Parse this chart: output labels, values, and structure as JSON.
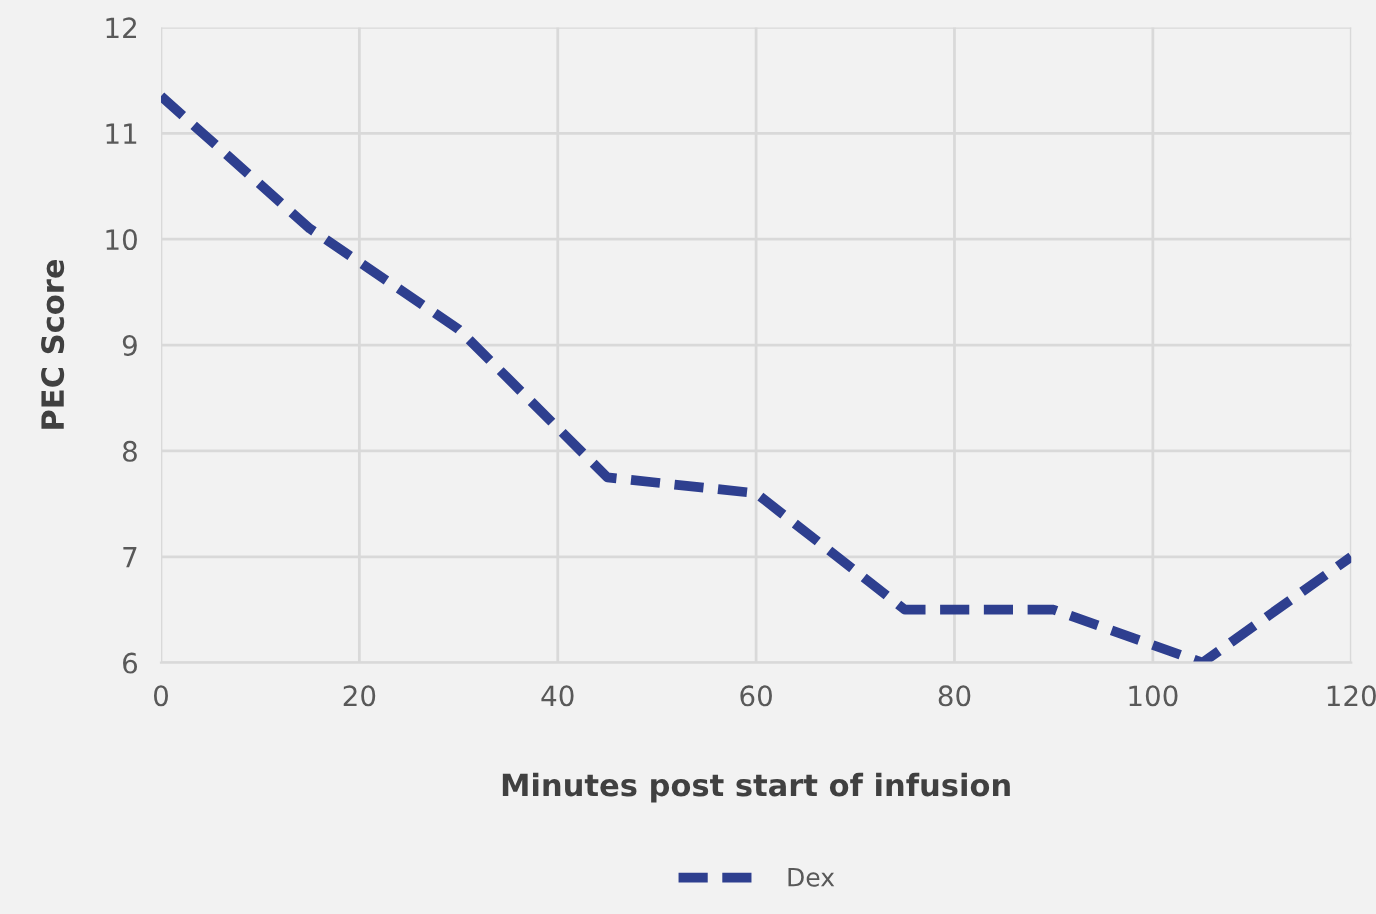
{
  "chart_data": {
    "type": "line",
    "xlabel": "Minutes post start of infusion",
    "ylabel": "PEC Score",
    "x": [
      0,
      15,
      30,
      45,
      60,
      75,
      90,
      105,
      120
    ],
    "series": [
      {
        "name": "Dex",
        "color": "#2e3f8f",
        "values": [
          11.35,
          10.1,
          9.15,
          7.75,
          7.6,
          6.5,
          6.5,
          6.0,
          7.0
        ]
      }
    ],
    "xlim": [
      0,
      120
    ],
    "xticks": [
      0,
      20,
      40,
      60,
      80,
      100,
      120
    ],
    "ylim": [
      6,
      12
    ],
    "yticks": [
      6,
      7,
      8,
      9,
      10,
      11,
      12
    ],
    "grid": true,
    "legend": "bottom",
    "line_style": "dashed",
    "marker": "none"
  }
}
